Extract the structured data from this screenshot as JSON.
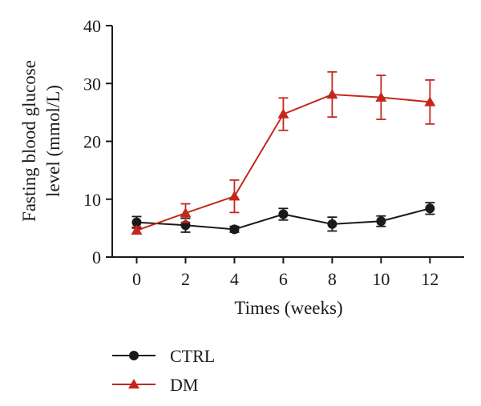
{
  "chart_data": {
    "type": "line",
    "xlabel": "Times (weeks)",
    "ylabel": [
      "Fasting blood glucose",
      "level (mmol/L)"
    ],
    "x": [
      0,
      2,
      4,
      6,
      8,
      10,
      12
    ],
    "xlim": [
      -1,
      13.4
    ],
    "ylim": [
      0,
      40
    ],
    "xticks": [
      "0",
      "2",
      "4",
      "6",
      "8",
      "10",
      "12"
    ],
    "yticks": [
      "0",
      "10",
      "20",
      "30",
      "40"
    ],
    "legend_position": "bottom-left",
    "grid": false,
    "series": [
      {
        "name": "CTRL",
        "color": "#1a1a1a",
        "marker": "circle",
        "values": [
          6.0,
          5.5,
          4.8,
          7.4,
          5.7,
          6.2,
          8.4
        ],
        "errors": [
          1.0,
          1.2,
          0.5,
          1.0,
          1.2,
          0.9,
          1.0
        ]
      },
      {
        "name": "DM",
        "color": "#c4281c",
        "marker": "triangle",
        "values": [
          4.6,
          7.6,
          10.5,
          24.7,
          28.1,
          27.6,
          26.8
        ],
        "errors": [
          0.6,
          1.6,
          2.8,
          2.8,
          3.9,
          3.8,
          3.8
        ]
      }
    ]
  }
}
